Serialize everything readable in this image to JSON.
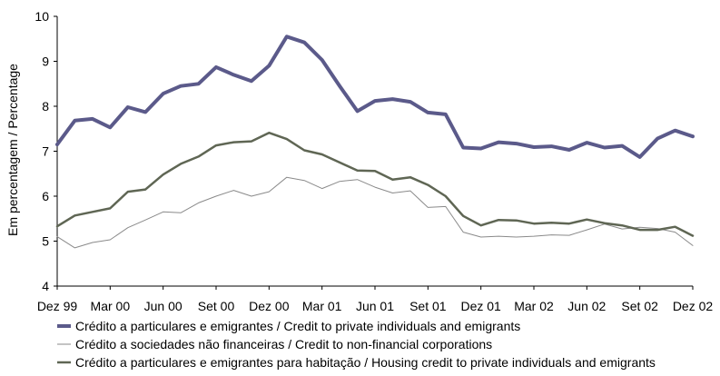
{
  "chart_data": {
    "type": "line",
    "title": "",
    "xlabel": "",
    "ylabel": "Em percentagem / Percentage",
    "ylim": [
      4,
      10
    ],
    "yticks": [
      "4",
      "5",
      "6",
      "7",
      "8",
      "9",
      "10"
    ],
    "xticks": [
      "Dez 99",
      "Mar 00",
      "Jun 00",
      "Set 00",
      "Dez 00",
      "Mar 01",
      "Jun 01",
      "Set 01",
      "Dez 01",
      "Mar 02",
      "Jun 02",
      "Set 02",
      "Dez 02"
    ],
    "x": [
      "Dez 99",
      "Jan 00",
      "Fev 00",
      "Mar 00",
      "Abr 00",
      "Mai 00",
      "Jun 00",
      "Jul 00",
      "Ago 00",
      "Set 00",
      "Out 00",
      "Nov 00",
      "Dez 00",
      "Jan 01",
      "Fev 01",
      "Mar 01",
      "Abr 01",
      "Mai 01",
      "Jun 01",
      "Jul 01",
      "Ago 01",
      "Set 01",
      "Out 01",
      "Nov 01",
      "Dez 01",
      "Jan 02",
      "Fev 02",
      "Mar 02",
      "Abr 02",
      "Mai 02",
      "Jun 02",
      "Jul 02",
      "Ago 02",
      "Set 02",
      "Out 02",
      "Nov 02",
      "Dez 02"
    ],
    "grid": false,
    "legend_position": "bottom",
    "series": [
      {
        "name": "Crédito a particulares e emigrantes / Credit to private individuals and emigrants",
        "color": "#5b5a8a",
        "values": [
          7.15,
          7.68,
          7.72,
          7.53,
          7.98,
          7.87,
          8.28,
          8.45,
          8.5,
          8.87,
          8.7,
          8.56,
          8.9,
          9.55,
          9.42,
          9.03,
          8.45,
          7.89,
          8.12,
          8.16,
          8.1,
          7.86,
          7.82,
          7.08,
          7.06,
          7.2,
          7.17,
          7.09,
          7.11,
          7.03,
          7.19,
          7.08,
          7.12,
          6.87,
          7.28,
          7.46,
          7.33
        ]
      },
      {
        "name": "Crédito a sociedades não financeiras / Credit to non-financial corporations",
        "color": "#8a8a8a",
        "values": [
          5.1,
          4.85,
          4.97,
          5.03,
          5.3,
          5.47,
          5.65,
          5.63,
          5.85,
          6.0,
          6.13,
          6.0,
          6.1,
          6.42,
          6.35,
          6.17,
          6.33,
          6.37,
          6.2,
          6.07,
          6.12,
          5.75,
          5.77,
          5.2,
          5.09,
          5.11,
          5.09,
          5.11,
          5.14,
          5.13,
          5.25,
          5.38,
          5.27,
          5.31,
          5.28,
          5.2,
          4.9
        ]
      },
      {
        "name": "Crédito a particulares e emigrantes para habitação / Housing credit to private individuals and emigrants",
        "color": "#5f6654",
        "values": [
          5.33,
          5.57,
          5.65,
          5.73,
          6.1,
          6.15,
          6.48,
          6.72,
          6.88,
          7.13,
          7.2,
          7.22,
          7.41,
          7.27,
          7.02,
          6.93,
          6.75,
          6.57,
          6.56,
          6.37,
          6.42,
          6.25,
          6.0,
          5.56,
          5.35,
          5.47,
          5.46,
          5.39,
          5.41,
          5.39,
          5.48,
          5.4,
          5.35,
          5.25,
          5.25,
          5.32,
          5.12
        ]
      }
    ]
  }
}
